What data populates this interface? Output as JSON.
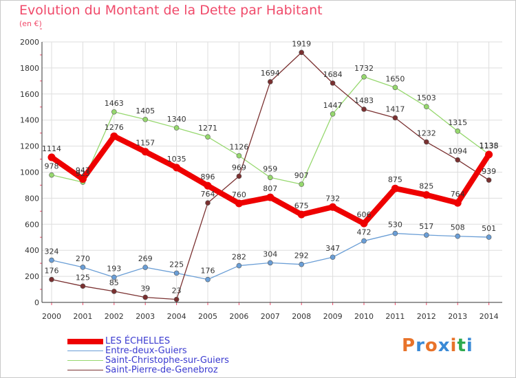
{
  "header": {
    "title": "Evolution du Montant de la Dette par Habitant",
    "subtitle": "(en €)"
  },
  "logo": {
    "text": "Proxiti",
    "colors": [
      "#e8732a",
      "#3a8ad6",
      "#e8732a",
      "#3a8ad6",
      "#e8732a",
      "#2eaa4e",
      "#3a8ad6"
    ]
  },
  "chart_data": {
    "type": "line",
    "title": "Evolution du Montant de la Dette par Habitant",
    "ylabel": "(en €)",
    "xlabel": "",
    "x": [
      "2000",
      "2001",
      "2002",
      "2003",
      "2004",
      "2005",
      "2006",
      "2007",
      "2008",
      "2009",
      "2010",
      "2011",
      "2012",
      "2013",
      "2014"
    ],
    "yticks": [
      0,
      200,
      400,
      600,
      800,
      1000,
      1200,
      1400,
      1600,
      1800,
      2000
    ],
    "ylim": [
      0,
      2000
    ],
    "grid": true,
    "legend_position": "bottom-left",
    "series": [
      {
        "name": "LES ÉCHELLES",
        "color": "#ee0000",
        "values": [
          1114,
          947,
          1276,
          1157,
          1035,
          896,
          760,
          807,
          675,
          732,
          606,
          875,
          825,
          764,
          1135
        ]
      },
      {
        "name": "Entre-deux-Guiers",
        "color": "#6a9ed6",
        "values": [
          324,
          270,
          193,
          269,
          225,
          176,
          282,
          304,
          292,
          347,
          472,
          530,
          517,
          508,
          501
        ]
      },
      {
        "name": "Saint-Christophe-sur-Guiers",
        "color": "#96d86e",
        "values": [
          978,
          923,
          1463,
          1405,
          1340,
          1271,
          1126,
          959,
          907,
          1447,
          1732,
          1650,
          1503,
          1315,
          1138
        ]
      },
      {
        "name": "Saint-Pierre-de-Genebroz",
        "color": "#7a3030",
        "values": [
          176,
          125,
          85,
          39,
          23,
          764,
          969,
          1694,
          1919,
          1684,
          1483,
          1417,
          1232,
          1094,
          939
        ]
      }
    ]
  }
}
